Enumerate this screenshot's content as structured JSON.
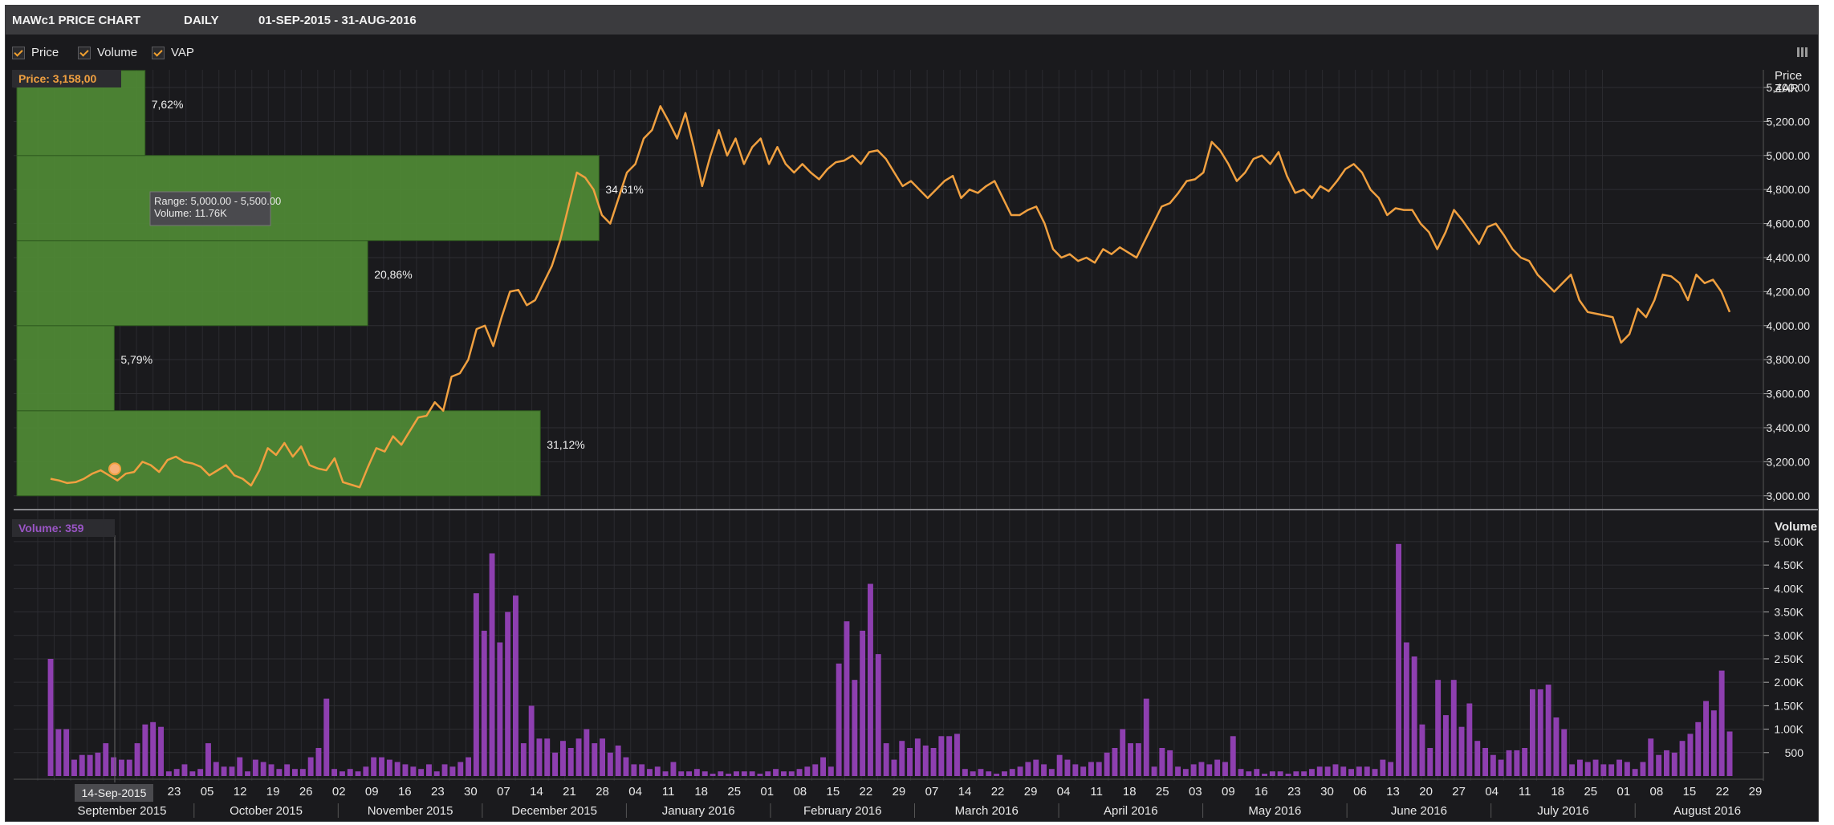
{
  "header": {
    "title": "MAWc1 PRICE CHART",
    "period": "DAILY",
    "range": "01-SEP-2015 - 31-AUG-2016"
  },
  "toggles": [
    {
      "label": "Price",
      "checked": true
    },
    {
      "label": "Volume",
      "checked": true
    },
    {
      "label": "VAP",
      "checked": true
    }
  ],
  "price_readout": "Price: 3,158,00",
  "volume_readout": "Volume: 359",
  "price_axis_title": "Price",
  "price_axis_unit": "ZAR",
  "volume_axis_title": "Volume",
  "tooltip": {
    "line1": "Range: 5,000.00 - 5,500.00",
    "line2": "Volume: 11.76K"
  },
  "crosshair_date": "14-Sep-2015",
  "colors": {
    "price": "#f0a040",
    "volume": "#8e3fb0",
    "vap": "#4f8a35",
    "background": "#1a1a1d",
    "grid": "#2e2e33"
  },
  "chart_data": [
    {
      "type": "line",
      "series": [
        {
          "name": "Price",
          "values": [
            3100,
            3090,
            3075,
            3080,
            3100,
            3130,
            3150,
            3120,
            3090,
            3130,
            3140,
            3200,
            3180,
            3140,
            3210,
            3230,
            3200,
            3190,
            3170,
            3120,
            3150,
            3180,
            3120,
            3100,
            3060,
            3150,
            3280,
            3240,
            3310,
            3230,
            3290,
            3180,
            3160,
            3150,
            3220,
            3080,
            3065,
            3050,
            3170,
            3280,
            3260,
            3350,
            3300,
            3380,
            3460,
            3470,
            3550,
            3500,
            3700,
            3720,
            3800,
            3980,
            4000,
            3880,
            4050,
            4200,
            4210,
            4120,
            4150,
            4250,
            4350,
            4500,
            4700,
            4900,
            4870,
            4800,
            4650,
            4600,
            4750,
            4900,
            4950,
            5100,
            5150,
            5290,
            5200,
            5100,
            5250,
            5050,
            4820,
            5000,
            5150,
            5000,
            5100,
            4950,
            5050,
            5100,
            4950,
            5050,
            4950,
            4900,
            4950,
            4900,
            4860,
            4920,
            4960,
            4970,
            5000,
            4950,
            5020,
            5030,
            4980,
            4900,
            4820,
            4850,
            4800,
            4750,
            4800,
            4850,
            4880,
            4750,
            4800,
            4780,
            4820,
            4850,
            4750,
            4650,
            4650,
            4680,
            4700,
            4600,
            4450,
            4400,
            4420,
            4380,
            4400,
            4370,
            4450,
            4420,
            4460,
            4430,
            4400,
            4500,
            4600,
            4700,
            4720,
            4780,
            4850,
            4860,
            4900,
            5080,
            5030,
            4950,
            4850,
            4900,
            4980,
            5000,
            4950,
            5020,
            4880,
            4780,
            4800,
            4750,
            4820,
            4790,
            4850,
            4920,
            4950,
            4900,
            4800,
            4750,
            4650,
            4690,
            4680,
            4680,
            4600,
            4550,
            4450,
            4550,
            4680,
            4620,
            4550,
            4480,
            4580,
            4600,
            4530,
            4450,
            4400,
            4380,
            4300,
            4250,
            4200,
            4250,
            4300,
            4150,
            4080,
            4070,
            4060,
            4050,
            3900,
            3950,
            4100,
            4050,
            4150,
            4300,
            4290,
            4250,
            4150,
            4300,
            4250,
            4270,
            4200,
            4080
          ]
        }
      ],
      "y_ticks": [
        "3,000.00",
        "3,200.00",
        "3,400.00",
        "3,600.00",
        "3,800.00",
        "4,000.00",
        "4,200.00",
        "4,400.00",
        "4,600.00",
        "4,800.00",
        "5,000.00",
        "5,200.00",
        "5,400.00"
      ],
      "ylim": [
        2980,
        5480
      ],
      "vap": [
        {
          "range": [
            3000,
            3500
          ],
          "percent": "31,12%",
          "value": 31.12
        },
        {
          "range": [
            3500,
            4000
          ],
          "percent": "5,79%",
          "value": 5.79
        },
        {
          "range": [
            4000,
            4500
          ],
          "percent": "20,86%",
          "value": 20.86
        },
        {
          "range": [
            4500,
            5000
          ],
          "percent": "34,61%",
          "value": 34.61
        },
        {
          "range": [
            5000,
            5500
          ],
          "percent": "7,62%",
          "value": 7.62
        }
      ]
    },
    {
      "type": "bar",
      "series": [
        {
          "name": "Volume",
          "values": [
            2500,
            1000,
            1000,
            350,
            450,
            450,
            500,
            700,
            400,
            350,
            350,
            700,
            1100,
            1150,
            1050,
            100,
            150,
            250,
            100,
            150,
            700,
            300,
            200,
            200,
            400,
            100,
            350,
            300,
            250,
            150,
            250,
            150,
            150,
            400,
            600,
            1650,
            150,
            100,
            150,
            100,
            200,
            400,
            400,
            350,
            300,
            250,
            200,
            150,
            250,
            100,
            250,
            200,
            300,
            400,
            3900,
            3100,
            4750,
            2850,
            3500,
            3850,
            700,
            1500,
            800,
            800,
            500,
            750,
            600,
            800,
            1000,
            700,
            800,
            500,
            650,
            400,
            250,
            250,
            150,
            200,
            100,
            300,
            100,
            100,
            150,
            100,
            50,
            100,
            50,
            100,
            100,
            100,
            50,
            100,
            150,
            100,
            100,
            150,
            200,
            250,
            400,
            200,
            2400,
            3300,
            2050,
            3100,
            4100,
            2600,
            700,
            350,
            750,
            600,
            800,
            650,
            600,
            850,
            850,
            900,
            150,
            100,
            150,
            100,
            50,
            100,
            150,
            200,
            300,
            350,
            250,
            150,
            450,
            350,
            250,
            200,
            300,
            300,
            500,
            600,
            1000,
            700,
            700,
            1650,
            200,
            600,
            550,
            200,
            150,
            250,
            300,
            250,
            350,
            300,
            850,
            150,
            100,
            150,
            50,
            100,
            100,
            50,
            100,
            100,
            150,
            200,
            200,
            250,
            200,
            150,
            200,
            200,
            150,
            350,
            300,
            4950,
            2850,
            2550,
            1100,
            600,
            2050,
            1300,
            2050,
            1050,
            1550,
            750,
            600,
            450,
            350,
            550,
            550,
            600,
            1850,
            1850,
            1950,
            1250,
            1000,
            250,
            350,
            300,
            350,
            250,
            250,
            350,
            300,
            150,
            300,
            800,
            450,
            550,
            500,
            750,
            900,
            1150,
            1600,
            1400,
            2250,
            950
          ]
        }
      ],
      "y_ticks": [
        "500",
        "1.00K",
        "1.50K",
        "2.00K",
        "2.50K",
        "3.00K",
        "3.50K",
        "4.00K",
        "4.50K",
        "5.00K"
      ],
      "ylim": [
        0,
        5050
      ]
    }
  ],
  "x_axis": {
    "day_ticks": [
      "23",
      "05",
      "12",
      "19",
      "26",
      "02",
      "09",
      "16",
      "23",
      "30",
      "07",
      "14",
      "21",
      "28",
      "04",
      "11",
      "18",
      "25",
      "01",
      "08",
      "15",
      "22",
      "29",
      "07",
      "14",
      "22",
      "29",
      "04",
      "11",
      "18",
      "25",
      "03",
      "09",
      "16",
      "23",
      "30",
      "06",
      "13",
      "20",
      "27",
      "04",
      "11",
      "18",
      "25",
      "01",
      "08",
      "15",
      "22",
      "29"
    ],
    "months": [
      "September 2015",
      "October 2015",
      "November 2015",
      "December 2015",
      "January 2016",
      "February 2016",
      "March 2016",
      "April 2016",
      "May 2016",
      "June 2016",
      "July 2016",
      "August 2016"
    ]
  }
}
